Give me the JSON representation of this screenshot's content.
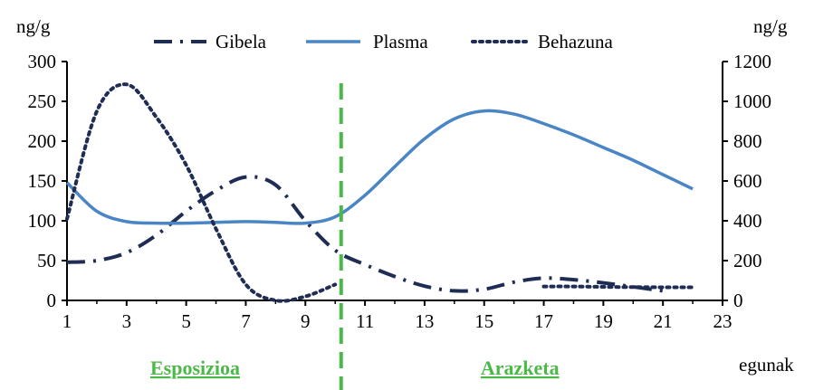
{
  "chart_data": {
    "type": "line",
    "left_axis_unit": "ng/g",
    "right_axis_unit": "ng/g",
    "xlabel": "egunak",
    "x_ticks": [
      1,
      3,
      5,
      7,
      9,
      11,
      13,
      15,
      17,
      19,
      21,
      23
    ],
    "xlim": [
      1,
      23
    ],
    "y_left_ticks": [
      0,
      50,
      100,
      150,
      200,
      250,
      300
    ],
    "ylim_left": [
      0,
      300
    ],
    "y_right_ticks": [
      0,
      200,
      400,
      600,
      800,
      1000,
      1200
    ],
    "ylim_right": [
      0,
      1200
    ],
    "legend_position": "top",
    "phases": [
      {
        "label": "Esposizioa",
        "color": "#4cb848"
      },
      {
        "label": "Arazketa",
        "color": "#4cb848"
      }
    ],
    "phase_boundary_x": 10.2,
    "series": [
      {
        "name": "Gibela",
        "axis": "left",
        "style": "dash-dot",
        "color": "#1f2d55",
        "x": [
          1,
          2,
          3,
          4,
          5,
          6,
          7,
          8,
          9,
          10,
          11,
          12,
          13,
          14,
          15,
          16,
          17,
          18,
          19,
          20,
          21
        ],
        "y": [
          48,
          50,
          60,
          82,
          112,
          138,
          155,
          145,
          100,
          63,
          45,
          30,
          18,
          12,
          14,
          23,
          28,
          26,
          22,
          17,
          12
        ]
      },
      {
        "name": "Plasma",
        "axis": "left",
        "style": "solid",
        "color": "#4a86c5",
        "x": [
          1,
          2,
          3,
          4,
          5,
          6,
          7,
          8,
          9,
          10,
          11,
          12,
          13,
          14,
          15,
          16,
          17,
          18,
          19,
          20,
          21,
          22
        ],
        "y": [
          148,
          112,
          99,
          97,
          97,
          98,
          99,
          98,
          97,
          105,
          132,
          168,
          203,
          228,
          238,
          234,
          222,
          208,
          192,
          176,
          158,
          140
        ]
      },
      {
        "name": "Behazuna",
        "axis": "right",
        "style": "dotted",
        "color": "#1f2d55",
        "x": [
          1,
          2,
          3,
          4,
          5,
          6,
          7,
          8,
          9,
          10
        ],
        "y": [
          410,
          950,
          1085,
          920,
          680,
          360,
          80,
          0,
          20,
          80
        ],
        "x_b": [
          17,
          18,
          19,
          20,
          21,
          22
        ],
        "y_b": [
          70,
          70,
          68,
          67,
          66,
          66
        ]
      }
    ]
  }
}
